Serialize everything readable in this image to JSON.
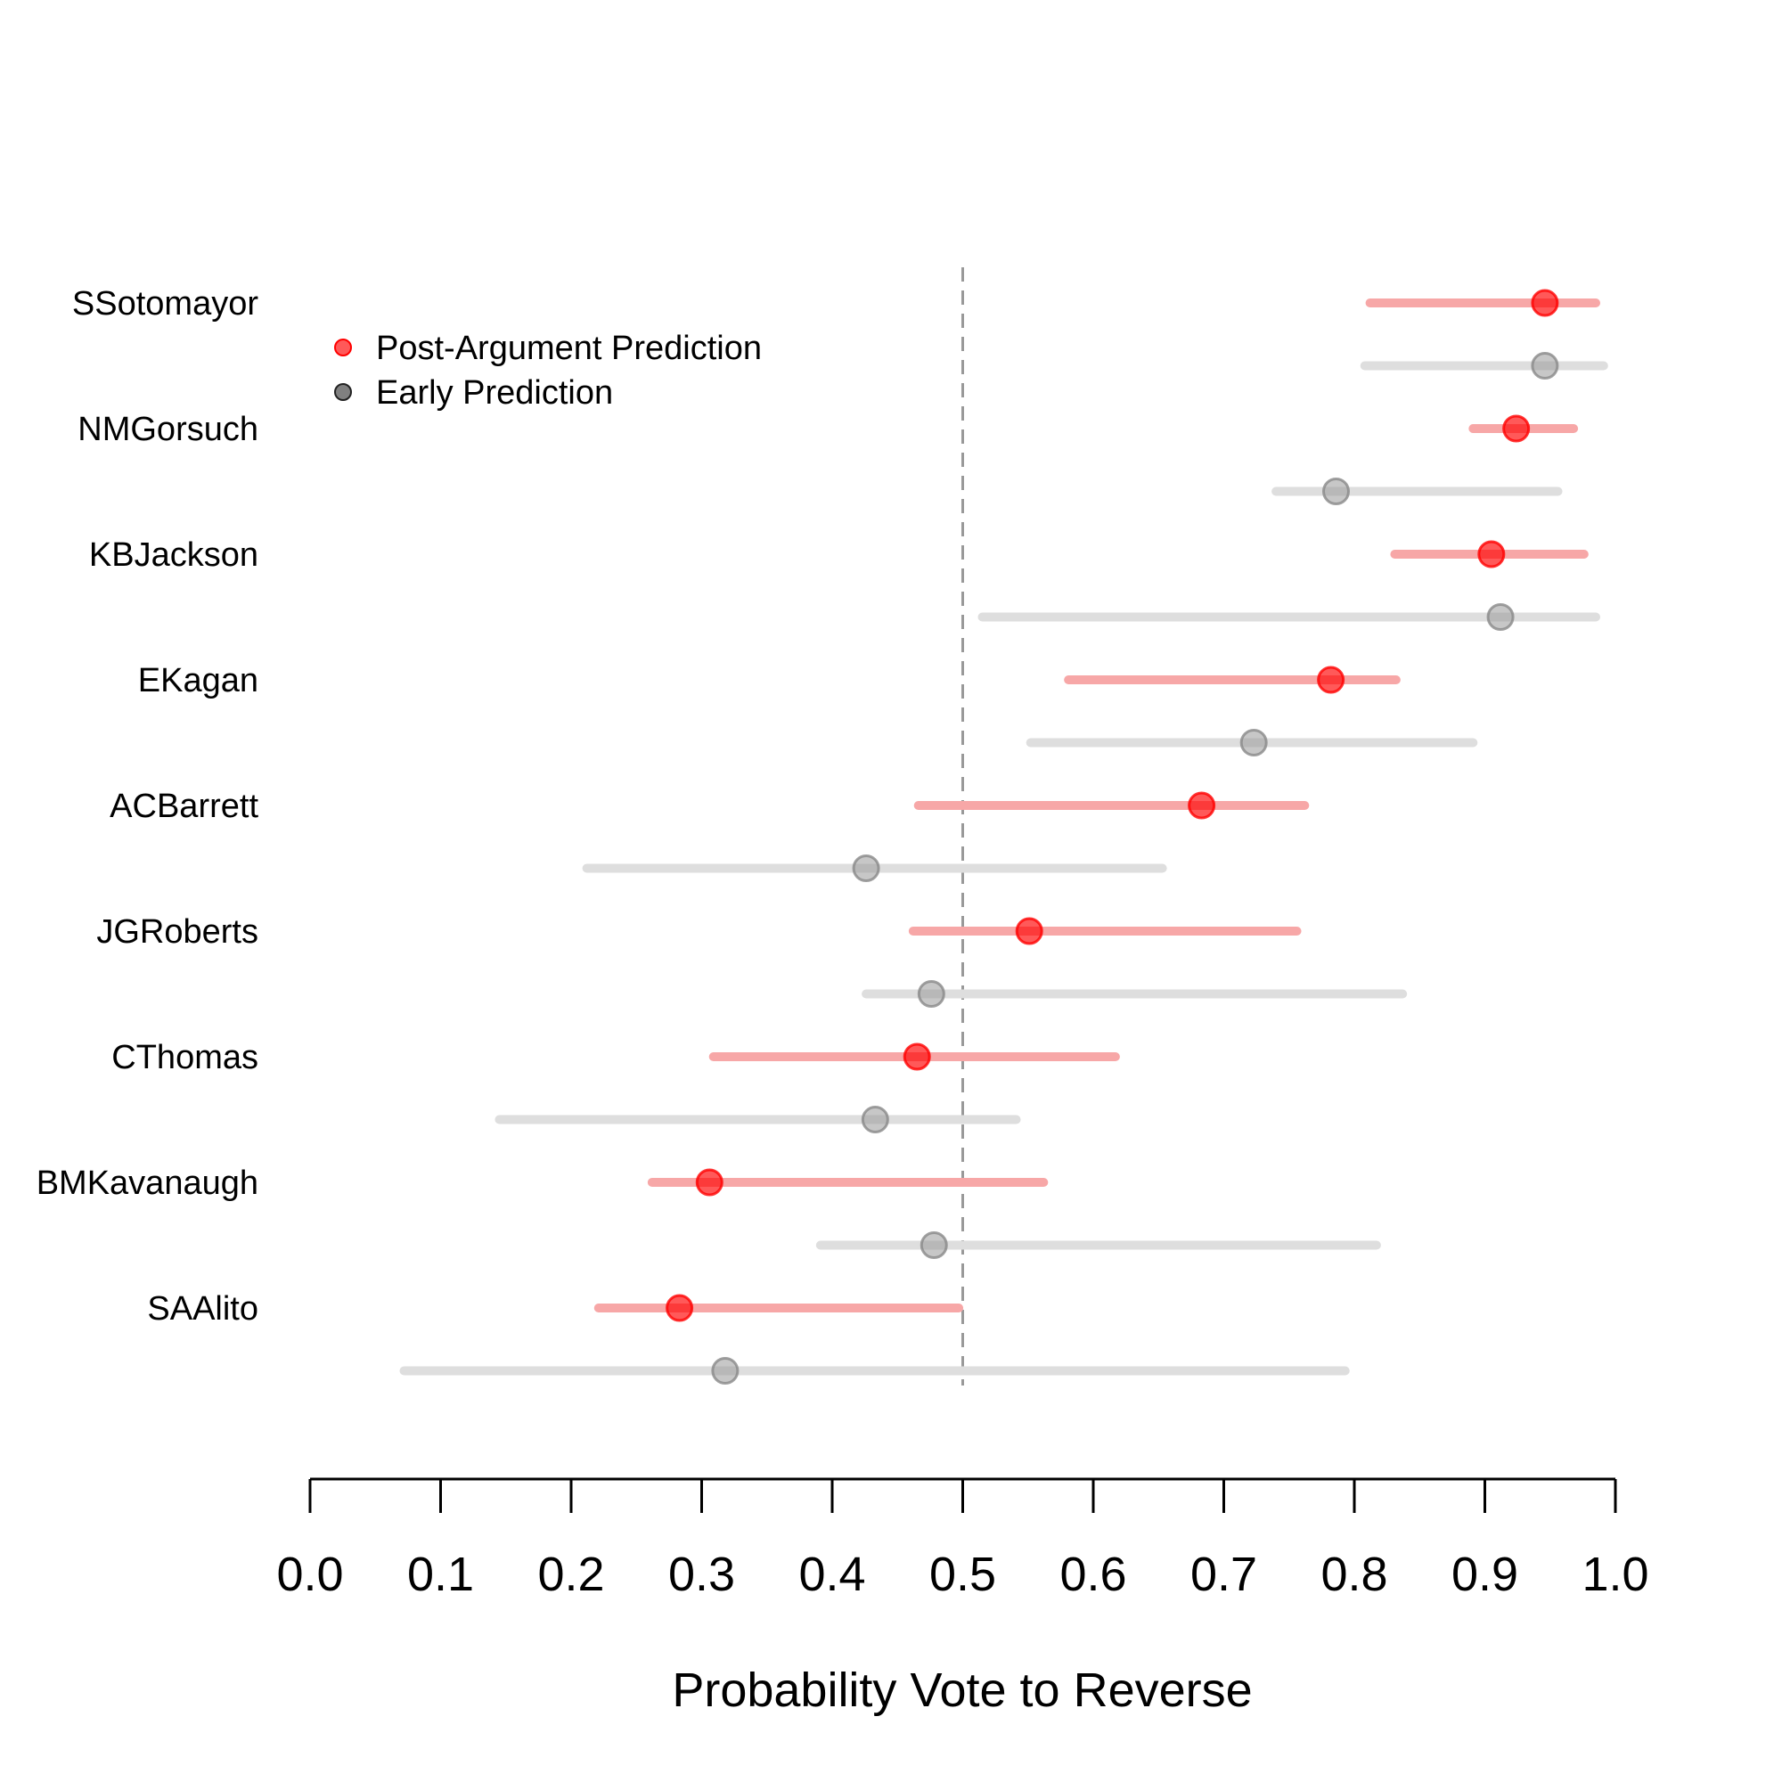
{
  "chart_data": {
    "type": "dot-interval",
    "xlabel": "Probability Vote to Reverse",
    "xlim": [
      0,
      1
    ],
    "xticks": [
      "0.0",
      "0.1",
      "0.2",
      "0.3",
      "0.4",
      "0.5",
      "0.6",
      "0.7",
      "0.8",
      "0.9",
      "1.0"
    ],
    "reference_line": {
      "x": 0.5,
      "style": "dashed"
    },
    "legend": {
      "placement": "top-left",
      "entries": [
        {
          "label": "Post-Argument Prediction",
          "color": "#ff0000"
        },
        {
          "label": "Early Prediction",
          "color": "#555555"
        }
      ]
    },
    "series": [
      {
        "name": "Post-Argument Prediction",
        "color": "#ff0000",
        "interval_color": "#f7a7a7"
      },
      {
        "name": "Early Prediction",
        "color": "#999999",
        "interval_color": "#dedede"
      }
    ],
    "justices": [
      {
        "name": "SSotomayor",
        "post": {
          "est": 0.946,
          "lo": 0.812,
          "hi": 0.985
        },
        "early": {
          "est": 0.946,
          "lo": 0.808,
          "hi": 0.991
        }
      },
      {
        "name": "NMGorsuch",
        "post": {
          "est": 0.924,
          "lo": 0.891,
          "hi": 0.968
        },
        "early": {
          "est": 0.786,
          "lo": 0.74,
          "hi": 0.956
        }
      },
      {
        "name": "KBJackson",
        "post": {
          "est": 0.905,
          "lo": 0.831,
          "hi": 0.976
        },
        "early": {
          "est": 0.912,
          "lo": 0.515,
          "hi": 0.985
        }
      },
      {
        "name": "EKagan",
        "post": {
          "est": 0.782,
          "lo": 0.581,
          "hi": 0.832
        },
        "early": {
          "est": 0.723,
          "lo": 0.552,
          "hi": 0.891
        }
      },
      {
        "name": "ACBarrett",
        "post": {
          "est": 0.683,
          "lo": 0.466,
          "hi": 0.762
        },
        "early": {
          "est": 0.426,
          "lo": 0.212,
          "hi": 0.653
        }
      },
      {
        "name": "JGRoberts",
        "post": {
          "est": 0.551,
          "lo": 0.462,
          "hi": 0.756
        },
        "early": {
          "est": 0.476,
          "lo": 0.426,
          "hi": 0.837
        }
      },
      {
        "name": "CThomas",
        "post": {
          "est": 0.465,
          "lo": 0.309,
          "hi": 0.617
        },
        "early": {
          "est": 0.433,
          "lo": 0.145,
          "hi": 0.541
        }
      },
      {
        "name": "BMKavanaugh",
        "post": {
          "est": 0.306,
          "lo": 0.262,
          "hi": 0.562
        },
        "early": {
          "est": 0.478,
          "lo": 0.391,
          "hi": 0.817
        }
      },
      {
        "name": "SAAlito",
        "post": {
          "est": 0.283,
          "lo": 0.221,
          "hi": 0.497
        },
        "early": {
          "est": 0.318,
          "lo": 0.072,
          "hi": 0.793
        }
      }
    ]
  }
}
